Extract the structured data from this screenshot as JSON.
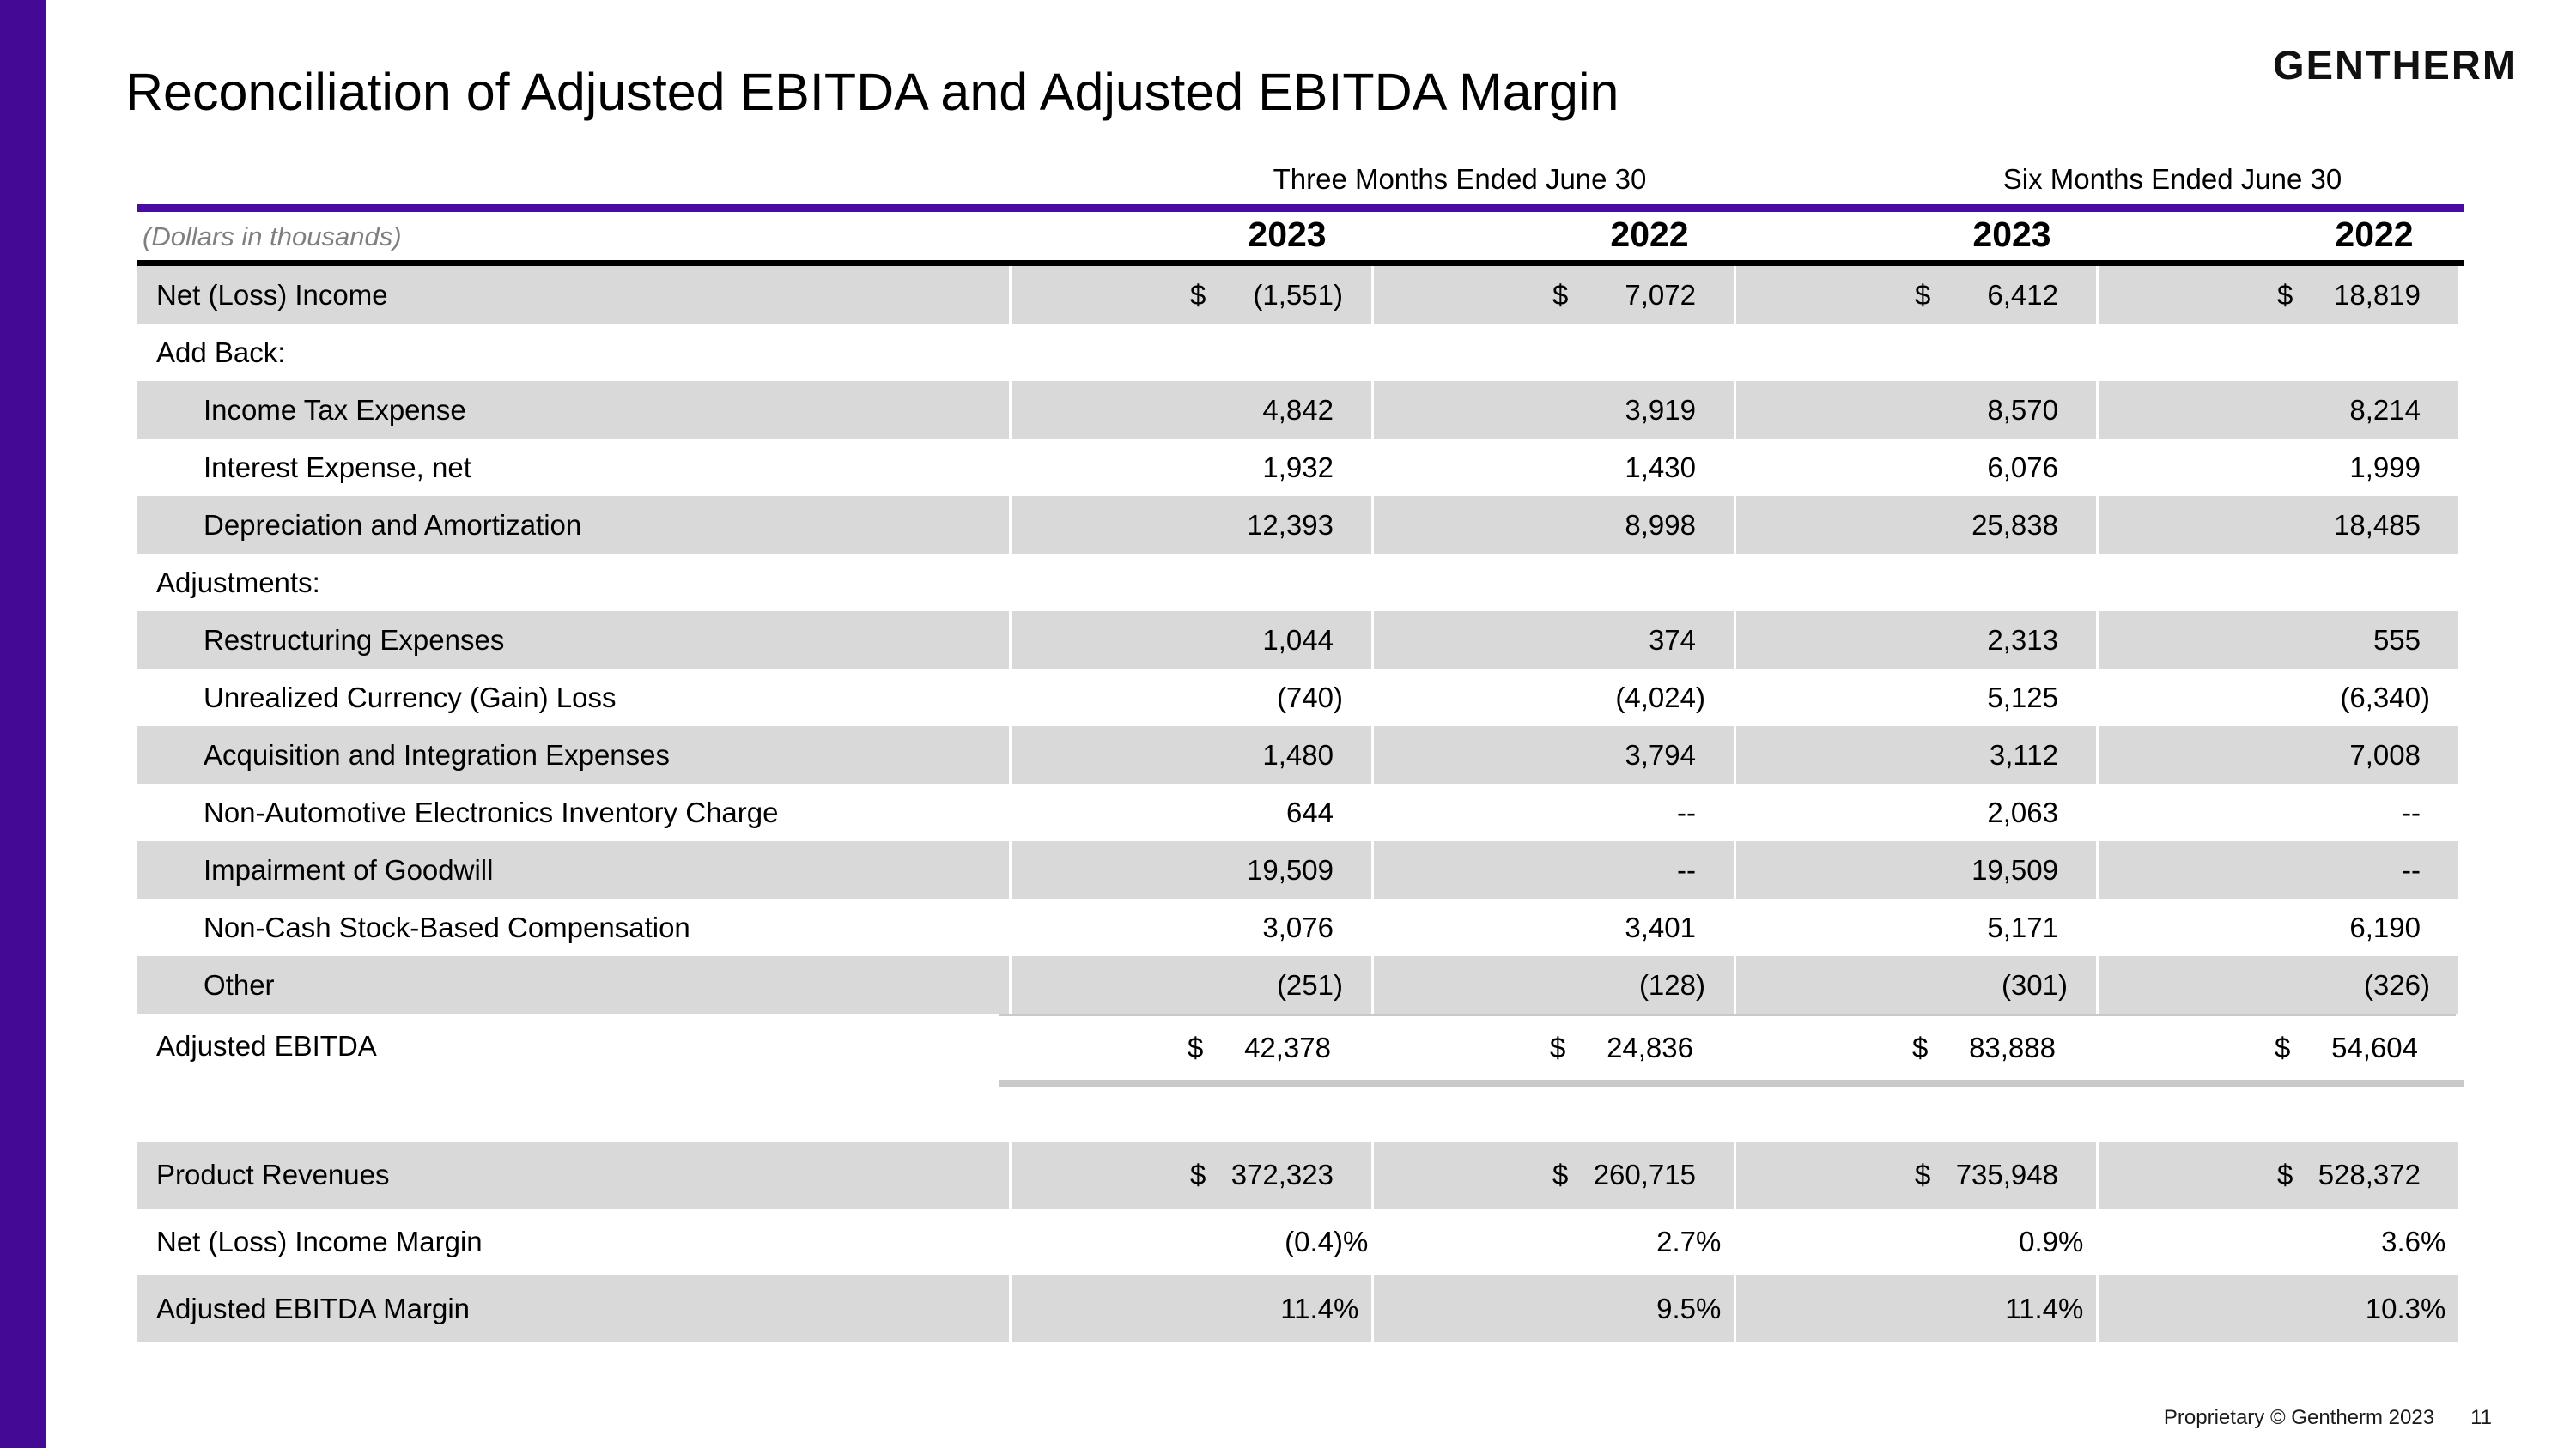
{
  "slide": {
    "title": "Reconciliation of Adjusted EBITDA and Adjusted EBITDA Margin",
    "logo": "GENTHERM",
    "footer": {
      "proprietary": "Proprietary © Gentherm 2023",
      "page_number": "11"
    }
  },
  "table": {
    "units_note": "(Dollars in thousands)",
    "col_groups": [
      "Three Months Ended June 30",
      "Six Months Ended June 30"
    ],
    "year_columns": [
      "2023",
      "2022",
      "2023",
      "2022"
    ],
    "rows": [
      {
        "label": "Net (Loss) Income",
        "indent": 0,
        "shaded": true,
        "values": [
          "$ (1,551)",
          "$ 7,072",
          "$ 6,412",
          "$ 18,819"
        ]
      },
      {
        "label": "Add Back:",
        "indent": 0,
        "shaded": false,
        "values": [
          "",
          "",
          "",
          ""
        ]
      },
      {
        "label": "Income Tax Expense",
        "indent": 1,
        "shaded": true,
        "values": [
          "4,842",
          "3,919",
          "8,570",
          "8,214"
        ]
      },
      {
        "label": "Interest Expense, net",
        "indent": 1,
        "shaded": false,
        "values": [
          "1,932",
          "1,430",
          "6,076",
          "1,999"
        ]
      },
      {
        "label": "Depreciation and Amortization",
        "indent": 1,
        "shaded": true,
        "values": [
          "12,393",
          "8,998",
          "25,838",
          "18,485"
        ]
      },
      {
        "label": "Adjustments:",
        "indent": 0,
        "shaded": false,
        "values": [
          "",
          "",
          "",
          ""
        ]
      },
      {
        "label": "Restructuring Expenses",
        "indent": 1,
        "shaded": true,
        "values": [
          "1,044",
          "374",
          "2,313",
          "555"
        ]
      },
      {
        "label": "Unrealized Currency (Gain) Loss",
        "indent": 1,
        "shaded": false,
        "values": [
          "(740)",
          "(4,024)",
          "5,125",
          "(6,340)"
        ]
      },
      {
        "label": "Acquisition and Integration Expenses",
        "indent": 1,
        "shaded": true,
        "values": [
          "1,480",
          "3,794",
          "3,112",
          "7,008"
        ]
      },
      {
        "label": "Non-Automotive Electronics Inventory Charge",
        "indent": 1,
        "shaded": false,
        "values": [
          "644",
          "--",
          "2,063",
          "--"
        ]
      },
      {
        "label": "Impairment of Goodwill",
        "indent": 1,
        "shaded": true,
        "values": [
          "19,509",
          "--",
          "19,509",
          "--"
        ]
      },
      {
        "label": "Non-Cash Stock-Based Compensation",
        "indent": 1,
        "shaded": false,
        "values": [
          "3,076",
          "3,401",
          "5,171",
          "6,190"
        ]
      },
      {
        "label": "Other",
        "indent": 1,
        "shaded": true,
        "values": [
          "(251)",
          "(128)",
          "(301)",
          "(326)"
        ]
      }
    ],
    "total_row": {
      "label": "Adjusted EBITDA",
      "values": [
        "$ 42,378",
        "$ 24,836",
        "$ 83,888",
        "$ 54,604"
      ]
    },
    "summary_rows": [
      {
        "label": "Product Revenues",
        "shaded": true,
        "values": [
          "$ 372,323",
          "$ 260,715",
          "$ 735,948",
          "$ 528,372"
        ]
      },
      {
        "label": "Net (Loss) Income Margin",
        "shaded": false,
        "values": [
          "(0.4)%",
          "2.7%",
          "0.9%",
          "3.6%"
        ]
      },
      {
        "label": "Adjusted EBITDA Margin",
        "shaded": true,
        "values": [
          "11.4%",
          "9.5%",
          "11.4%",
          "10.3%"
        ]
      }
    ]
  },
  "colors": {
    "accent_purple": "#440A96",
    "rule_purple": "#4A0AA4",
    "row_shade": "#D9D9D9",
    "total_rule": "#C9C9C9",
    "muted_text": "#7F7F7F",
    "text": "#000000",
    "background": "#FFFFFF"
  }
}
